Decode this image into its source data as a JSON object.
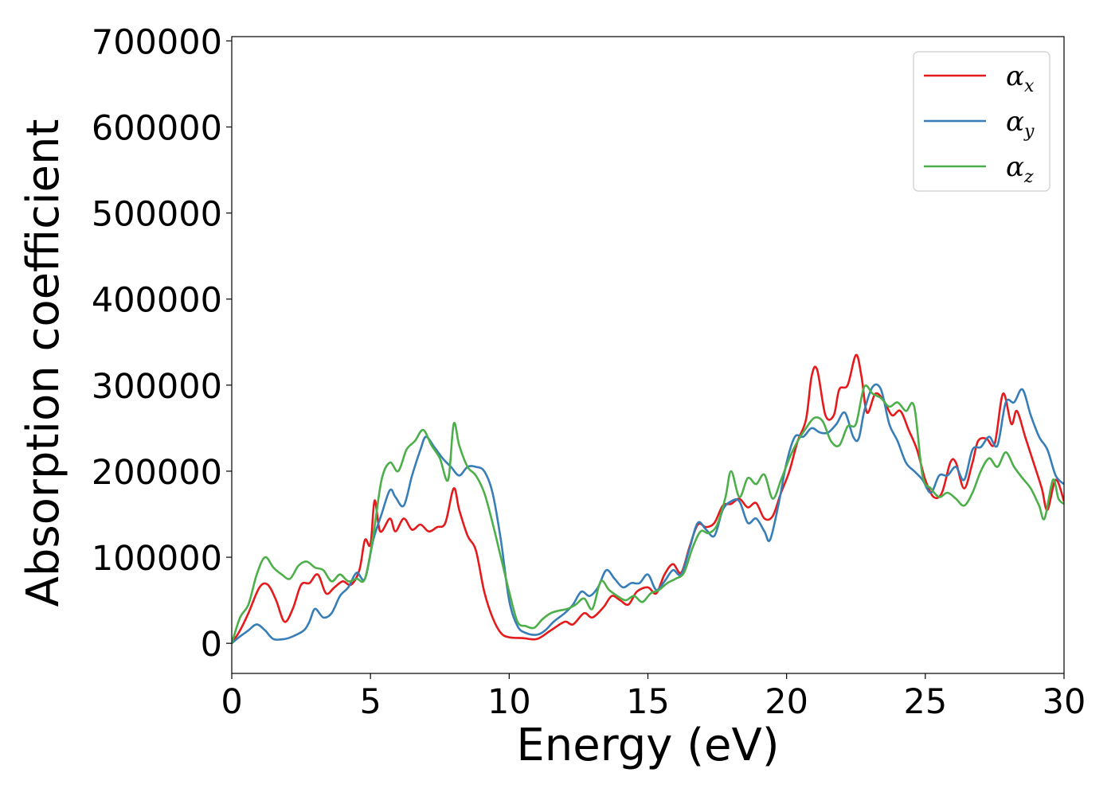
{
  "chart_data": {
    "type": "line",
    "xlabel": "Energy (eV)",
    "ylabel": "Absorption coefficient",
    "xlim": [
      0,
      30
    ],
    "ylim": [
      -35000,
      705000
    ],
    "xticks": [
      0,
      5,
      10,
      15,
      20,
      25,
      30
    ],
    "xtick_labels": [
      "0",
      "5",
      "10",
      "15",
      "20",
      "25",
      "30"
    ],
    "yticks": [
      0,
      100000,
      200000,
      300000,
      400000,
      500000,
      600000,
      700000
    ],
    "ytick_labels": [
      "0",
      "100000",
      "200000",
      "300000",
      "400000",
      "500000",
      "600000",
      "700000"
    ],
    "grid": false,
    "legend_position": "top-right",
    "series": [
      {
        "name": "αx",
        "symbol": "α",
        "subscript": "x",
        "color": "#e41a1c",
        "points": [
          [
            0,
            0
          ],
          [
            0.3,
            15000
          ],
          [
            0.6,
            35000
          ],
          [
            1.0,
            65000
          ],
          [
            1.3,
            68000
          ],
          [
            1.6,
            50000
          ],
          [
            1.9,
            25000
          ],
          [
            2.2,
            40000
          ],
          [
            2.5,
            68000
          ],
          [
            2.8,
            70000
          ],
          [
            3.1,
            80000
          ],
          [
            3.4,
            58000
          ],
          [
            3.7,
            65000
          ],
          [
            4.0,
            72000
          ],
          [
            4.3,
            68000
          ],
          [
            4.6,
            85000
          ],
          [
            4.8,
            120000
          ],
          [
            5.0,
            115000
          ],
          [
            5.15,
            166000
          ],
          [
            5.35,
            130000
          ],
          [
            5.7,
            145000
          ],
          [
            5.9,
            130000
          ],
          [
            6.2,
            145000
          ],
          [
            6.5,
            132000
          ],
          [
            6.8,
            138000
          ],
          [
            7.1,
            130000
          ],
          [
            7.4,
            135000
          ],
          [
            7.7,
            140000
          ],
          [
            8.0,
            180000
          ],
          [
            8.2,
            155000
          ],
          [
            8.5,
            125000
          ],
          [
            8.8,
            108000
          ],
          [
            9.1,
            60000
          ],
          [
            9.4,
            30000
          ],
          [
            9.7,
            12000
          ],
          [
            10.0,
            7000
          ],
          [
            10.5,
            6000
          ],
          [
            11.0,
            5000
          ],
          [
            11.5,
            15000
          ],
          [
            12.0,
            25000
          ],
          [
            12.3,
            22000
          ],
          [
            12.7,
            35000
          ],
          [
            13.0,
            30000
          ],
          [
            13.4,
            42000
          ],
          [
            13.7,
            55000
          ],
          [
            14.0,
            50000
          ],
          [
            14.3,
            45000
          ],
          [
            14.6,
            60000
          ],
          [
            15.0,
            65000
          ],
          [
            15.3,
            58000
          ],
          [
            15.6,
            80000
          ],
          [
            15.9,
            92000
          ],
          [
            16.2,
            82000
          ],
          [
            16.5,
            112000
          ],
          [
            16.8,
            138000
          ],
          [
            17.1,
            135000
          ],
          [
            17.4,
            140000
          ],
          [
            17.7,
            160000
          ],
          [
            18.0,
            162000
          ],
          [
            18.3,
            168000
          ],
          [
            18.6,
            158000
          ],
          [
            18.9,
            163000
          ],
          [
            19.2,
            145000
          ],
          [
            19.5,
            148000
          ],
          [
            19.8,
            175000
          ],
          [
            20.1,
            200000
          ],
          [
            20.4,
            235000
          ],
          [
            20.7,
            260000
          ],
          [
            20.9,
            310000
          ],
          [
            21.1,
            318000
          ],
          [
            21.4,
            265000
          ],
          [
            21.7,
            265000
          ],
          [
            21.9,
            295000
          ],
          [
            22.2,
            300000
          ],
          [
            22.5,
            335000
          ],
          [
            22.7,
            310000
          ],
          [
            22.9,
            268000
          ],
          [
            23.2,
            290000
          ],
          [
            23.5,
            282000
          ],
          [
            23.8,
            265000
          ],
          [
            24.1,
            270000
          ],
          [
            24.4,
            248000
          ],
          [
            24.7,
            225000
          ],
          [
            25.0,
            190000
          ],
          [
            25.3,
            170000
          ],
          [
            25.6,
            175000
          ],
          [
            25.9,
            210000
          ],
          [
            26.1,
            210000
          ],
          [
            26.4,
            180000
          ],
          [
            26.7,
            210000
          ],
          [
            26.9,
            235000
          ],
          [
            27.2,
            238000
          ],
          [
            27.5,
            232000
          ],
          [
            27.8,
            290000
          ],
          [
            28.1,
            255000
          ],
          [
            28.3,
            270000
          ],
          [
            28.6,
            240000
          ],
          [
            28.9,
            210000
          ],
          [
            29.2,
            180000
          ],
          [
            29.4,
            155000
          ],
          [
            29.7,
            190000
          ],
          [
            30.0,
            165000
          ]
        ]
      },
      {
        "name": "αy",
        "symbol": "α",
        "subscript": "y",
        "color": "#377eb8",
        "points": [
          [
            0,
            0
          ],
          [
            0.3,
            8000
          ],
          [
            0.6,
            15000
          ],
          [
            0.9,
            22000
          ],
          [
            1.2,
            15000
          ],
          [
            1.5,
            5000
          ],
          [
            1.9,
            5000
          ],
          [
            2.2,
            8000
          ],
          [
            2.6,
            15000
          ],
          [
            2.8,
            25000
          ],
          [
            3.0,
            40000
          ],
          [
            3.3,
            30000
          ],
          [
            3.6,
            35000
          ],
          [
            3.9,
            55000
          ],
          [
            4.2,
            65000
          ],
          [
            4.5,
            82000
          ],
          [
            4.8,
            75000
          ],
          [
            5.1,
            120000
          ],
          [
            5.4,
            150000
          ],
          [
            5.7,
            178000
          ],
          [
            5.9,
            170000
          ],
          [
            6.2,
            160000
          ],
          [
            6.5,
            195000
          ],
          [
            6.8,
            225000
          ],
          [
            7.0,
            240000
          ],
          [
            7.3,
            228000
          ],
          [
            7.6,
            215000
          ],
          [
            7.9,
            205000
          ],
          [
            8.2,
            195000
          ],
          [
            8.5,
            205000
          ],
          [
            8.8,
            205000
          ],
          [
            9.1,
            200000
          ],
          [
            9.4,
            175000
          ],
          [
            9.7,
            120000
          ],
          [
            10.0,
            50000
          ],
          [
            10.3,
            20000
          ],
          [
            10.6,
            12000
          ],
          [
            11.0,
            10000
          ],
          [
            11.3,
            15000
          ],
          [
            11.6,
            25000
          ],
          [
            12.0,
            35000
          ],
          [
            12.3,
            45000
          ],
          [
            12.6,
            60000
          ],
          [
            12.9,
            55000
          ],
          [
            13.2,
            65000
          ],
          [
            13.5,
            85000
          ],
          [
            13.8,
            75000
          ],
          [
            14.1,
            65000
          ],
          [
            14.4,
            70000
          ],
          [
            14.7,
            70000
          ],
          [
            15.0,
            80000
          ],
          [
            15.3,
            62000
          ],
          [
            15.6,
            72000
          ],
          [
            15.9,
            85000
          ],
          [
            16.2,
            80000
          ],
          [
            16.5,
            110000
          ],
          [
            16.8,
            140000
          ],
          [
            17.1,
            132000
          ],
          [
            17.4,
            125000
          ],
          [
            17.7,
            155000
          ],
          [
            18.0,
            165000
          ],
          [
            18.3,
            165000
          ],
          [
            18.6,
            140000
          ],
          [
            18.9,
            145000
          ],
          [
            19.2,
            130000
          ],
          [
            19.4,
            120000
          ],
          [
            19.7,
            160000
          ],
          [
            20.0,
            210000
          ],
          [
            20.3,
            240000
          ],
          [
            20.6,
            240000
          ],
          [
            20.9,
            250000
          ],
          [
            21.2,
            245000
          ],
          [
            21.5,
            245000
          ],
          [
            21.8,
            255000
          ],
          [
            22.1,
            268000
          ],
          [
            22.4,
            240000
          ],
          [
            22.6,
            238000
          ],
          [
            22.8,
            270000
          ],
          [
            23.1,
            298000
          ],
          [
            23.4,
            295000
          ],
          [
            23.7,
            255000
          ],
          [
            24.0,
            235000
          ],
          [
            24.3,
            210000
          ],
          [
            24.6,
            200000
          ],
          [
            24.9,
            190000
          ],
          [
            25.2,
            175000
          ],
          [
            25.5,
            195000
          ],
          [
            25.8,
            195000
          ],
          [
            26.1,
            205000
          ],
          [
            26.4,
            190000
          ],
          [
            26.7,
            225000
          ],
          [
            27.0,
            228000
          ],
          [
            27.3,
            240000
          ],
          [
            27.6,
            230000
          ],
          [
            27.9,
            280000
          ],
          [
            28.2,
            280000
          ],
          [
            28.5,
            295000
          ],
          [
            28.8,
            265000
          ],
          [
            29.1,
            240000
          ],
          [
            29.4,
            225000
          ],
          [
            29.7,
            195000
          ],
          [
            30.0,
            185000
          ]
        ]
      },
      {
        "name": "αz",
        "symbol": "α",
        "subscript": "z",
        "color": "#4daf4a",
        "points": [
          [
            0,
            0
          ],
          [
            0.3,
            30000
          ],
          [
            0.6,
            45000
          ],
          [
            0.9,
            80000
          ],
          [
            1.2,
            100000
          ],
          [
            1.5,
            88000
          ],
          [
            1.8,
            80000
          ],
          [
            2.1,
            75000
          ],
          [
            2.4,
            90000
          ],
          [
            2.7,
            95000
          ],
          [
            3.0,
            88000
          ],
          [
            3.3,
            85000
          ],
          [
            3.6,
            72000
          ],
          [
            3.9,
            80000
          ],
          [
            4.2,
            72000
          ],
          [
            4.5,
            75000
          ],
          [
            4.8,
            75000
          ],
          [
            5.1,
            125000
          ],
          [
            5.4,
            190000
          ],
          [
            5.7,
            210000
          ],
          [
            6.0,
            200000
          ],
          [
            6.3,
            225000
          ],
          [
            6.6,
            235000
          ],
          [
            6.9,
            248000
          ],
          [
            7.2,
            230000
          ],
          [
            7.5,
            215000
          ],
          [
            7.8,
            190000
          ],
          [
            8.0,
            255000
          ],
          [
            8.2,
            230000
          ],
          [
            8.5,
            205000
          ],
          [
            8.8,
            195000
          ],
          [
            9.1,
            175000
          ],
          [
            9.4,
            140000
          ],
          [
            9.7,
            100000
          ],
          [
            10.0,
            60000
          ],
          [
            10.3,
            25000
          ],
          [
            10.6,
            20000
          ],
          [
            10.9,
            18000
          ],
          [
            11.2,
            28000
          ],
          [
            11.5,
            35000
          ],
          [
            11.8,
            38000
          ],
          [
            12.1,
            40000
          ],
          [
            12.4,
            45000
          ],
          [
            12.7,
            52000
          ],
          [
            13.0,
            40000
          ],
          [
            13.3,
            72000
          ],
          [
            13.6,
            62000
          ],
          [
            13.9,
            55000
          ],
          [
            14.2,
            50000
          ],
          [
            14.5,
            55000
          ],
          [
            14.8,
            48000
          ],
          [
            15.1,
            58000
          ],
          [
            15.4,
            62000
          ],
          [
            15.7,
            70000
          ],
          [
            16.0,
            75000
          ],
          [
            16.3,
            82000
          ],
          [
            16.6,
            110000
          ],
          [
            16.9,
            130000
          ],
          [
            17.2,
            128000
          ],
          [
            17.5,
            138000
          ],
          [
            17.8,
            170000
          ],
          [
            18.0,
            200000
          ],
          [
            18.3,
            170000
          ],
          [
            18.6,
            192000
          ],
          [
            18.9,
            185000
          ],
          [
            19.2,
            196000
          ],
          [
            19.5,
            168000
          ],
          [
            19.8,
            190000
          ],
          [
            20.1,
            215000
          ],
          [
            20.4,
            235000
          ],
          [
            20.7,
            250000
          ],
          [
            21.0,
            262000
          ],
          [
            21.3,
            258000
          ],
          [
            21.6,
            235000
          ],
          [
            21.9,
            230000
          ],
          [
            22.2,
            252000
          ],
          [
            22.5,
            255000
          ],
          [
            22.8,
            298000
          ],
          [
            23.1,
            290000
          ],
          [
            23.4,
            285000
          ],
          [
            23.7,
            275000
          ],
          [
            24.0,
            280000
          ],
          [
            24.3,
            270000
          ],
          [
            24.6,
            275000
          ],
          [
            24.9,
            195000
          ],
          [
            25.2,
            180000
          ],
          [
            25.5,
            170000
          ],
          [
            25.8,
            175000
          ],
          [
            26.1,
            168000
          ],
          [
            26.4,
            160000
          ],
          [
            26.7,
            175000
          ],
          [
            27.0,
            200000
          ],
          [
            27.3,
            215000
          ],
          [
            27.6,
            205000
          ],
          [
            27.9,
            222000
          ],
          [
            28.2,
            205000
          ],
          [
            28.5,
            192000
          ],
          [
            28.8,
            180000
          ],
          [
            29.1,
            160000
          ],
          [
            29.3,
            145000
          ],
          [
            29.6,
            190000
          ],
          [
            29.8,
            168000
          ],
          [
            30.0,
            162000
          ]
        ]
      }
    ]
  }
}
